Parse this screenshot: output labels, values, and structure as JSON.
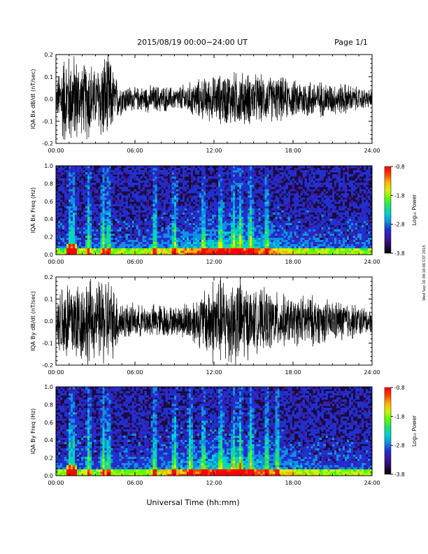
{
  "header": {
    "title": "2015/08/19  00:00−24:00 UT",
    "page": "Page 1/1"
  },
  "footer": {
    "xlabel": "Universal Time (hh:mm)",
    "side_stamp": "Wed Sep 16 09:18:06 CST 2015"
  },
  "colorbar": {
    "label": "Log₁₀ Power",
    "ticks": [
      "-0.8",
      "-1.8",
      "-2.8",
      "-3.8"
    ],
    "range": [
      -3.8,
      -0.8
    ],
    "colors": [
      "#000000",
      "#2a0a5a",
      "#3a18a0",
      "#2030d0",
      "#1090e0",
      "#00d0d0",
      "#20e070",
      "#60ff00",
      "#d8f000",
      "#ffb000",
      "#ff4000",
      "#ff0000"
    ]
  },
  "chart_data": [
    {
      "type": "line",
      "name": "IQA Bx dB/dt",
      "ylabel": "IQA Bx dB/dt (nT/sec)",
      "xlim": [
        0,
        24
      ],
      "ylim": [
        -0.2,
        0.2
      ],
      "x_ticks": [
        "00:00",
        "06:00",
        "12:00",
        "18:00",
        "24:00"
      ],
      "y_ticks": [
        "0.2",
        "0.1",
        "0.0",
        "-0.1",
        "-0.2"
      ],
      "envelope": {
        "hours": [
          0,
          0.5,
          1,
          1.5,
          2,
          2.5,
          3,
          3.5,
          4,
          4.5,
          5,
          6,
          7,
          8,
          9,
          10,
          11,
          12,
          13,
          14,
          15,
          16,
          17,
          18,
          19,
          20,
          21,
          22,
          23,
          24
        ],
        "amplitude": [
          0.06,
          0.2,
          0.2,
          0.2,
          0.14,
          0.2,
          0.12,
          0.2,
          0.2,
          0.1,
          0.07,
          0.05,
          0.06,
          0.06,
          0.05,
          0.07,
          0.09,
          0.1,
          0.12,
          0.12,
          0.11,
          0.1,
          0.1,
          0.08,
          0.09,
          0.08,
          0.07,
          0.07,
          0.05,
          0.04
        ]
      }
    },
    {
      "type": "heatmap",
      "name": "IQA Bx Freq",
      "ylabel": "IQA Bx Freq (Hz)",
      "xlim": [
        0,
        24
      ],
      "ylim": [
        0,
        1
      ],
      "x_ticks": [
        "00:00",
        "06:00",
        "12:00",
        "18:00",
        "24:00"
      ],
      "y_ticks": [
        "1.0",
        "0.8",
        "0.6",
        "0.4",
        "0.2",
        "0.0"
      ],
      "z_range": [
        -3.8,
        -0.8
      ],
      "activity_hours": [
        1.1,
        1.3,
        2.5,
        3.6,
        4.0,
        7.5,
        9.0,
        11.2,
        12.5,
        13.5,
        14.0,
        14.8,
        16.0
      ]
    },
    {
      "type": "line",
      "name": "IQA By dB/dt",
      "ylabel": "IQA By dB/dt (nT/sec)",
      "xlim": [
        0,
        24
      ],
      "ylim": [
        -0.2,
        0.2
      ],
      "x_ticks": [
        "00:00",
        "06:00",
        "12:00",
        "18:00",
        "24:00"
      ],
      "y_ticks": [
        "0.2",
        "0.1",
        "0.0",
        "-0.1",
        "-0.2"
      ],
      "envelope": {
        "hours": [
          0,
          0.5,
          1,
          1.5,
          2,
          2.5,
          3,
          3.5,
          4,
          4.5,
          5,
          6,
          7,
          8,
          9,
          10,
          11,
          12,
          13,
          14,
          15,
          16,
          17,
          18,
          19,
          20,
          21,
          22,
          23,
          24
        ],
        "amplitude": [
          0.07,
          0.2,
          0.2,
          0.2,
          0.18,
          0.2,
          0.15,
          0.2,
          0.2,
          0.14,
          0.09,
          0.07,
          0.07,
          0.08,
          0.06,
          0.09,
          0.12,
          0.2,
          0.2,
          0.2,
          0.13,
          0.14,
          0.12,
          0.1,
          0.12,
          0.1,
          0.09,
          0.09,
          0.07,
          0.05
        ]
      }
    },
    {
      "type": "heatmap",
      "name": "IQA By Freq",
      "ylabel": "IQA By Freq (Hz)",
      "xlim": [
        0,
        24
      ],
      "ylim": [
        0,
        1
      ],
      "x_ticks": [
        "00:00",
        "06:00",
        "12:00",
        "18:00",
        "24:00"
      ],
      "y_ticks": [
        "1.0",
        "0.8",
        "0.6",
        "0.4",
        "0.2",
        "0.0"
      ],
      "z_range": [
        -3.8,
        -0.8
      ],
      "activity_hours": [
        1.1,
        1.3,
        2.5,
        3.6,
        4.0,
        7.5,
        9.0,
        10.2,
        11.2,
        12.5,
        13.5,
        14.0,
        14.8,
        16.0,
        16.8
      ]
    }
  ]
}
